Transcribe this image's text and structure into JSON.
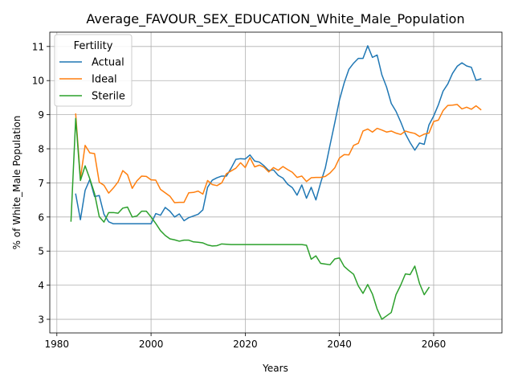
{
  "chart_data": {
    "type": "line",
    "title": "Average_FAVOUR_SEX_EDUCATION_White_Male_Population",
    "xlabel": "Years",
    "ylabel": "% of White_Male Population",
    "xlim": [
      1978.5,
      2074.5
    ],
    "ylim": [
      2.6,
      11.42
    ],
    "xticks": [
      1980,
      2000,
      2020,
      2040,
      2060
    ],
    "yticks": [
      3,
      4,
      5,
      6,
      7,
      8,
      9,
      10,
      11
    ],
    "grid": true,
    "legend": {
      "title": "Fertility",
      "position": "top-left"
    },
    "series": [
      {
        "name": "Actual",
        "color": "#1f77b4",
        "x": [
          1984,
          1985,
          1986,
          1987,
          1988,
          1989,
          1990,
          1991,
          1992,
          1993,
          1994,
          1995,
          1996,
          1997,
          1998,
          1999,
          2000,
          2001,
          2002,
          2003,
          2004,
          2005,
          2006,
          2007,
          2008,
          2009,
          2010,
          2011,
          2012,
          2013,
          2014,
          2015,
          2016,
          2017,
          2018,
          2019,
          2020,
          2021,
          2022,
          2023,
          2024,
          2025,
          2026,
          2027,
          2028,
          2029,
          2030,
          2031,
          2032,
          2033,
          2034,
          2035,
          2036,
          2037,
          2038,
          2039,
          2040,
          2041,
          2042,
          2043,
          2044,
          2045,
          2046,
          2047,
          2048,
          2049,
          2050,
          2051,
          2052,
          2053,
          2054,
          2055,
          2056,
          2057,
          2058,
          2059,
          2060,
          2061,
          2062,
          2063,
          2064,
          2065,
          2066,
          2067,
          2068,
          2069,
          2070
        ],
        "y": [
          6.67,
          5.92,
          6.78,
          7.1,
          6.6,
          6.63,
          6.08,
          5.86,
          5.8,
          5.8,
          5.8,
          5.8,
          5.8,
          5.8,
          5.8,
          5.8,
          5.8,
          6.1,
          6.05,
          6.28,
          6.17,
          6.0,
          6.09,
          5.89,
          5.98,
          6.03,
          6.08,
          6.21,
          6.87,
          7.08,
          7.15,
          7.2,
          7.2,
          7.43,
          7.69,
          7.71,
          7.7,
          7.82,
          7.64,
          7.61,
          7.5,
          7.36,
          7.38,
          7.22,
          7.14,
          6.96,
          6.86,
          6.64,
          6.94,
          6.55,
          6.87,
          6.5,
          7.0,
          7.44,
          8.11,
          8.76,
          9.43,
          9.93,
          10.33,
          10.51,
          10.65,
          10.65,
          11.02,
          10.68,
          10.75,
          10.17,
          9.81,
          9.33,
          9.1,
          8.79,
          8.44,
          8.18,
          7.96,
          8.17,
          8.13,
          8.7,
          8.96,
          9.29,
          9.69,
          9.9,
          10.21,
          10.42,
          10.52,
          10.43,
          10.39,
          10.01,
          10.05
        ]
      },
      {
        "name": "Ideal",
        "color": "#ff7f0e",
        "x": [
          1984,
          1985,
          1986,
          1987,
          1988,
          1989,
          1990,
          1991,
          1992,
          1993,
          1994,
          1995,
          1996,
          1997,
          1998,
          1999,
          2000,
          2001,
          2002,
          2003,
          2004,
          2005,
          2006,
          2007,
          2008,
          2009,
          2010,
          2011,
          2012,
          2013,
          2014,
          2015,
          2016,
          2017,
          2018,
          2019,
          2020,
          2021,
          2022,
          2023,
          2024,
          2025,
          2026,
          2027,
          2028,
          2029,
          2030,
          2031,
          2032,
          2033,
          2034,
          2035,
          2036,
          2037,
          2038,
          2039,
          2040,
          2041,
          2042,
          2043,
          2044,
          2045,
          2046,
          2047,
          2048,
          2049,
          2050,
          2051,
          2052,
          2053,
          2054,
          2055,
          2056,
          2057,
          2058,
          2059,
          2060,
          2061,
          2062,
          2063,
          2064,
          2065,
          2066,
          2067,
          2068,
          2069,
          2070
        ],
        "y": [
          9.02,
          7.13,
          8.1,
          7.88,
          7.86,
          7.02,
          6.93,
          6.7,
          6.85,
          7.03,
          7.36,
          7.24,
          6.84,
          7.06,
          7.2,
          7.19,
          7.09,
          7.08,
          6.81,
          6.71,
          6.61,
          6.42,
          6.43,
          6.43,
          6.71,
          6.72,
          6.76,
          6.67,
          7.07,
          6.95,
          6.92,
          7.0,
          7.27,
          7.35,
          7.43,
          7.59,
          7.45,
          7.74,
          7.47,
          7.52,
          7.46,
          7.32,
          7.45,
          7.37,
          7.48,
          7.39,
          7.31,
          7.16,
          7.2,
          7.04,
          7.15,
          7.16,
          7.16,
          7.19,
          7.29,
          7.44,
          7.73,
          7.83,
          7.82,
          8.1,
          8.16,
          8.52,
          8.58,
          8.49,
          8.6,
          8.55,
          8.49,
          8.52,
          8.46,
          8.42,
          8.52,
          8.48,
          8.45,
          8.36,
          8.43,
          8.46,
          8.8,
          8.84,
          9.12,
          9.27,
          9.28,
          9.3,
          9.17,
          9.22,
          9.16,
          9.26,
          9.15
        ]
      },
      {
        "name": "Sterile",
        "color": "#2ca02c",
        "x": [
          1983,
          1984,
          1985,
          1986,
          1987,
          1988,
          1989,
          1990,
          1991,
          1992,
          1993,
          1994,
          1995,
          1996,
          1997,
          1998,
          1999,
          2000,
          2001,
          2002,
          2003,
          2004,
          2005,
          2006,
          2007,
          2008,
          2009,
          2010,
          2011,
          2012,
          2013,
          2014,
          2015,
          2016,
          2017,
          2018,
          2019,
          2020,
          2021,
          2022,
          2023,
          2024,
          2025,
          2026,
          2027,
          2028,
          2029,
          2030,
          2031,
          2032,
          2033,
          2034,
          2035,
          2036,
          2037,
          2038,
          2039,
          2040,
          2041,
          2042,
          2043,
          2044,
          2045,
          2046,
          2047,
          2048,
          2049,
          2050,
          2051,
          2052,
          2053,
          2054,
          2055,
          2056,
          2057,
          2058,
          2059
        ],
        "y": [
          5.88,
          8.89,
          7.07,
          7.5,
          7.12,
          6.69,
          6.01,
          5.85,
          6.13,
          6.13,
          6.11,
          6.26,
          6.29,
          6.0,
          6.03,
          6.17,
          6.17,
          6.0,
          5.81,
          5.6,
          5.46,
          5.36,
          5.33,
          5.29,
          5.32,
          5.32,
          5.27,
          5.26,
          5.24,
          5.18,
          5.15,
          5.16,
          5.21,
          5.2,
          5.19,
          5.19,
          5.19,
          5.19,
          5.19,
          5.19,
          5.19,
          5.19,
          5.19,
          5.19,
          5.19,
          5.19,
          5.19,
          5.19,
          5.19,
          5.19,
          5.17,
          4.76,
          4.86,
          4.64,
          4.62,
          4.6,
          4.77,
          4.8,
          4.55,
          4.43,
          4.32,
          3.98,
          3.76,
          4.02,
          3.74,
          3.3,
          3.0,
          3.1,
          3.2,
          3.72,
          4.0,
          4.33,
          4.31,
          4.56,
          4.05,
          3.72,
          3.93
        ]
      }
    ]
  }
}
